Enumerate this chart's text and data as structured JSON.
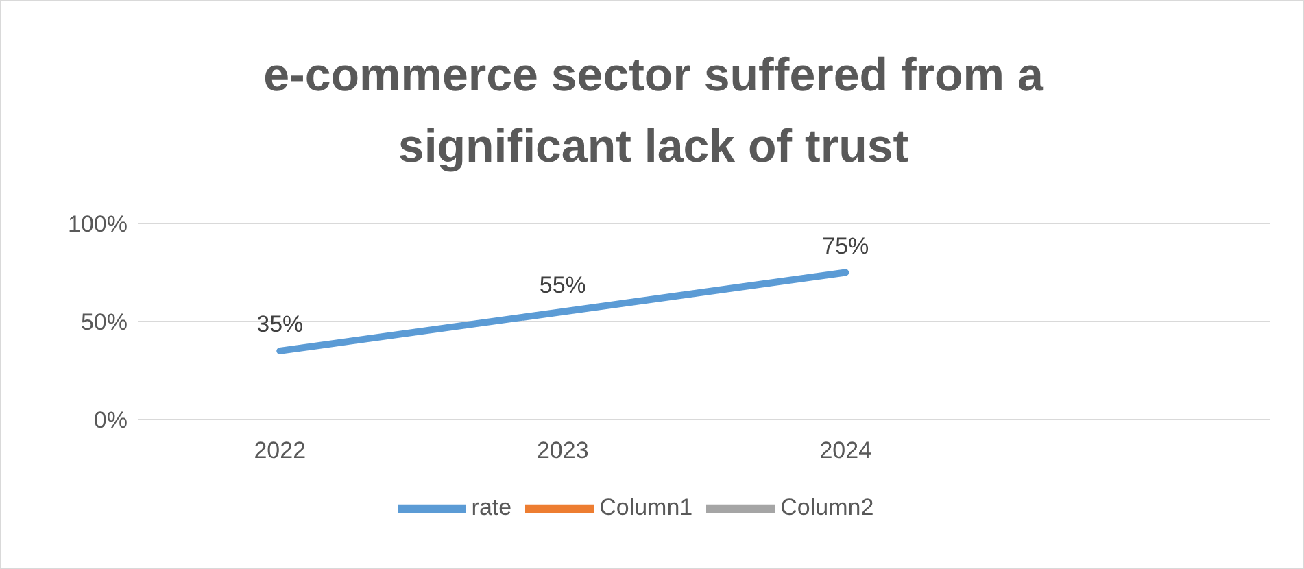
{
  "chart_data": {
    "type": "line",
    "title": "e-commerce sector suffered from a significant lack of trust",
    "categories": [
      "2022",
      "2023",
      "2024",
      null
    ],
    "series": [
      {
        "name": "rate",
        "color": "#5b9bd5",
        "values": [
          35,
          55,
          75,
          null
        ],
        "value_labels": [
          "35%",
          "55%",
          "75%",
          null
        ]
      },
      {
        "name": "Column1",
        "color": "#ed7d31",
        "values": [
          null,
          null,
          null,
          null
        ]
      },
      {
        "name": "Column2",
        "color": "#a5a5a5",
        "values": [
          null,
          null,
          null,
          null
        ]
      }
    ],
    "ylim": [
      0,
      100
    ],
    "yticks": [
      {
        "value": 0,
        "label": "0%"
      },
      {
        "value": 50,
        "label": "50%"
      },
      {
        "value": 100,
        "label": "100%"
      }
    ],
    "grid": "y",
    "legend": "bottom",
    "marker": "none",
    "line_style": "solid"
  }
}
